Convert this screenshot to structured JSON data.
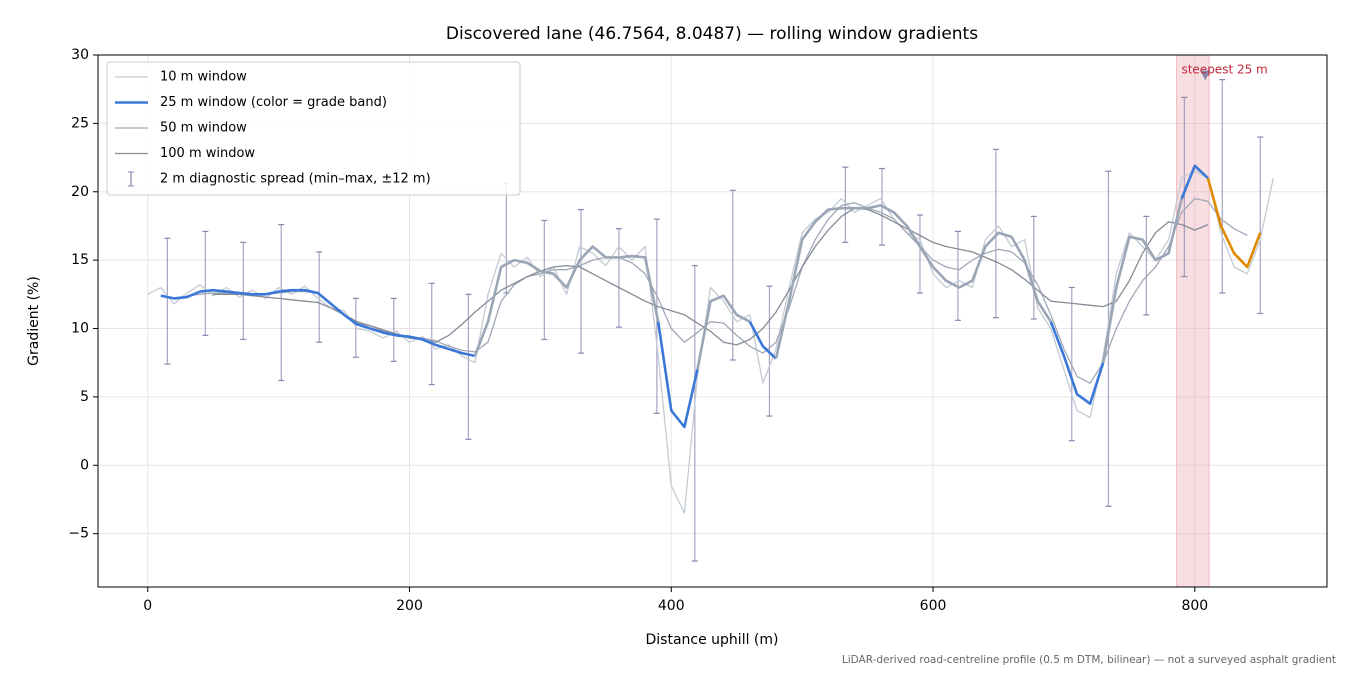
{
  "chart_data": {
    "type": "line",
    "title": "Discovered lane (46.7564, 8.0487) — rolling window gradients",
    "x_label": "Distance uphill (m)",
    "y_label": "Gradient (%)",
    "footnote": "LiDAR-derived road-centreline profile (0.5 m DTM, bilinear) — not a surveyed asphalt gradient",
    "xlim": [
      -38,
      901
    ],
    "ylim": [
      -8.9,
      30
    ],
    "xticks": [
      0,
      200,
      400,
      600,
      800
    ],
    "yticks": [
      {
        "value": -5,
        "label": "−5"
      },
      0,
      5,
      10,
      15,
      20,
      25,
      30
    ],
    "grid": true,
    "legend": "upper left",
    "x": [
      0,
      10,
      20,
      30,
      40,
      50,
      60,
      70,
      80,
      90,
      100,
      110,
      120,
      130,
      140,
      150,
      160,
      170,
      180,
      190,
      200,
      210,
      220,
      230,
      240,
      250,
      260,
      270,
      280,
      290,
      300,
      310,
      320,
      330,
      340,
      350,
      360,
      370,
      380,
      390,
      400,
      410,
      420,
      430,
      440,
      450,
      460,
      470,
      480,
      490,
      500,
      510,
      520,
      530,
      540,
      550,
      560,
      570,
      580,
      590,
      600,
      610,
      620,
      630,
      640,
      650,
      660,
      670,
      680,
      690,
      700,
      710,
      720,
      730,
      740,
      750,
      760,
      770,
      780,
      790,
      800,
      810,
      820,
      830,
      840,
      850,
      860
    ],
    "series": [
      {
        "name": "10 m window",
        "color": "#c4cbd5",
        "width": 1.3,
        "values": [
          12.5,
          13.0,
          11.8,
          12.6,
          13.2,
          12.4,
          13.0,
          12.3,
          12.8,
          12.2,
          13.0,
          12.5,
          13.1,
          12.2,
          11.5,
          11.3,
          10.0,
          9.8,
          9.3,
          9.8,
          9.0,
          9.4,
          8.5,
          8.8,
          8.0,
          7.5,
          12.5,
          15.5,
          14.5,
          15.2,
          13.8,
          14.5,
          12.5,
          16.0,
          15.5,
          14.6,
          16.0,
          15.0,
          16.0,
          8.0,
          -1.5,
          -3.5,
          6.5,
          13.0,
          12.0,
          10.5,
          11.0,
          6.0,
          8.5,
          13.0,
          17.0,
          18.0,
          18.5,
          19.5,
          18.5,
          19.0,
          19.5,
          18.0,
          17.0,
          16.5,
          14.0,
          13.0,
          13.5,
          13.0,
          16.5,
          17.5,
          16.0,
          16.5,
          11.5,
          10.0,
          7.0,
          4.0,
          3.5,
          8.0,
          14.0,
          17.0,
          16.0,
          15.0,
          16.5,
          21.0,
          21.5,
          21.0,
          17.0,
          14.5,
          14.0,
          16.5,
          21.0
        ]
      },
      {
        "name": "25 m window (color = grade band)",
        "color": "#3a78d8",
        "width": 2.6,
        "band_edges": [
          10,
          20
        ],
        "band_colors": [
          "#9aa6b6",
          "#3a78d8",
          "#e08a00"
        ],
        "values": [
          null,
          12.4,
          12.2,
          12.3,
          12.7,
          12.8,
          12.7,
          12.6,
          12.5,
          12.5,
          12.7,
          12.8,
          12.8,
          12.6,
          11.8,
          11.0,
          10.3,
          10.0,
          9.7,
          9.5,
          9.4,
          9.2,
          8.8,
          8.5,
          8.2,
          8.0,
          10.5,
          14.5,
          15.0,
          14.8,
          14.2,
          14.0,
          13.0,
          15.0,
          16.0,
          15.2,
          15.2,
          15.3,
          15.2,
          10.5,
          4.0,
          2.8,
          7.0,
          12.0,
          12.4,
          11.0,
          10.5,
          8.7,
          7.8,
          12.0,
          16.5,
          17.8,
          18.7,
          18.8,
          18.8,
          18.8,
          19.0,
          18.5,
          17.5,
          16.0,
          14.5,
          13.5,
          13.0,
          13.5,
          16.0,
          17.0,
          16.7,
          15.0,
          12.0,
          10.5,
          8.0,
          5.2,
          4.5,
          7.5,
          13.0,
          16.7,
          16.5,
          15.0,
          15.5,
          19.5,
          21.9,
          21.0,
          17.5,
          15.5,
          14.5,
          17.0,
          null
        ]
      },
      {
        "name": "50 m window",
        "color": "#a0a8b8",
        "width": 1.3,
        "values": [
          null,
          null,
          null,
          12.4,
          12.5,
          12.6,
          12.6,
          12.5,
          12.5,
          12.5,
          12.6,
          12.7,
          12.7,
          12.6,
          11.8,
          11.0,
          10.4,
          10.2,
          9.8,
          9.6,
          9.4,
          9.3,
          9.1,
          8.7,
          8.4,
          8.3,
          9.0,
          12.0,
          13.2,
          13.8,
          14.0,
          14.3,
          14.3,
          14.6,
          15.0,
          15.2,
          15.2,
          14.8,
          14.0,
          12.2,
          10.0,
          9.0,
          9.7,
          10.5,
          10.4,
          9.5,
          8.7,
          8.2,
          9.0,
          11.5,
          14.5,
          16.5,
          18.0,
          19.0,
          19.2,
          18.8,
          18.5,
          18.0,
          17.0,
          16.0,
          15.0,
          14.5,
          14.3,
          15.0,
          15.5,
          15.8,
          15.6,
          14.8,
          13.2,
          11.0,
          8.5,
          6.5,
          6.0,
          7.5,
          10.0,
          12.0,
          13.5,
          14.5,
          16.0,
          18.5,
          19.5,
          19.3,
          18.0,
          17.3,
          16.8,
          null,
          null
        ]
      },
      {
        "name": "100 m window",
        "color": "#858b97",
        "width": 1.3,
        "values": [
          null,
          null,
          null,
          null,
          null,
          12.5,
          12.5,
          12.5,
          12.4,
          12.3,
          12.2,
          12.1,
          12.0,
          11.9,
          11.5,
          11.0,
          10.5,
          10.2,
          9.9,
          9.6,
          9.3,
          9.2,
          9.0,
          9.5,
          10.3,
          11.2,
          12.0,
          12.8,
          13.3,
          13.8,
          14.2,
          14.5,
          14.6,
          14.5,
          14.0,
          13.5,
          13.0,
          12.5,
          12.0,
          11.6,
          11.3,
          11.0,
          10.4,
          9.8,
          9.0,
          8.8,
          9.2,
          10.0,
          11.2,
          12.8,
          14.5,
          16.0,
          17.2,
          18.2,
          18.8,
          18.7,
          18.3,
          17.8,
          17.3,
          16.8,
          16.3,
          16.0,
          15.8,
          15.6,
          15.2,
          14.8,
          14.3,
          13.6,
          12.8,
          12.0,
          11.9,
          11.8,
          11.7,
          11.6,
          12.0,
          13.5,
          15.5,
          17.0,
          17.8,
          17.6,
          17.2,
          17.6,
          null,
          null,
          null,
          null,
          null
        ]
      }
    ],
    "errorbars": {
      "name": "2 m diagnostic spread (min–max, ±12 m)",
      "color": "#8a86b0",
      "x": [
        15,
        44,
        73,
        102,
        131,
        159,
        188,
        217,
        245,
        274,
        303,
        331,
        360,
        389,
        418,
        447,
        475,
        533,
        561,
        590,
        619,
        648,
        677,
        706,
        734,
        763,
        792,
        821,
        850
      ],
      "low": [
        7.4,
        9.5,
        9.2,
        6.2,
        9.0,
        7.9,
        7.6,
        5.9,
        1.9,
        12.6,
        9.2,
        8.2,
        10.1,
        3.8,
        -7.0,
        7.7,
        3.6,
        16.3,
        16.1,
        12.6,
        10.6,
        10.8,
        10.7,
        1.8,
        -3.0,
        11.0,
        13.8,
        12.6,
        11.1
      ],
      "high": [
        16.6,
        17.1,
        16.3,
        17.6,
        15.6,
        12.2,
        12.2,
        13.3,
        12.5,
        20.6,
        17.9,
        18.7,
        17.3,
        18.0,
        14.6,
        20.1,
        13.1,
        21.8,
        21.7,
        18.3,
        17.1,
        23.1,
        18.2,
        13.0,
        21.5,
        18.2,
        26.9,
        28.2,
        24.0
      ]
    },
    "highlight": {
      "xlim": [
        786,
        811
      ],
      "color": "#e8a0a8",
      "label": "steepest 25 m",
      "label_color": "#c0283a",
      "point": {
        "x": 808,
        "y": 28.5
      }
    }
  }
}
